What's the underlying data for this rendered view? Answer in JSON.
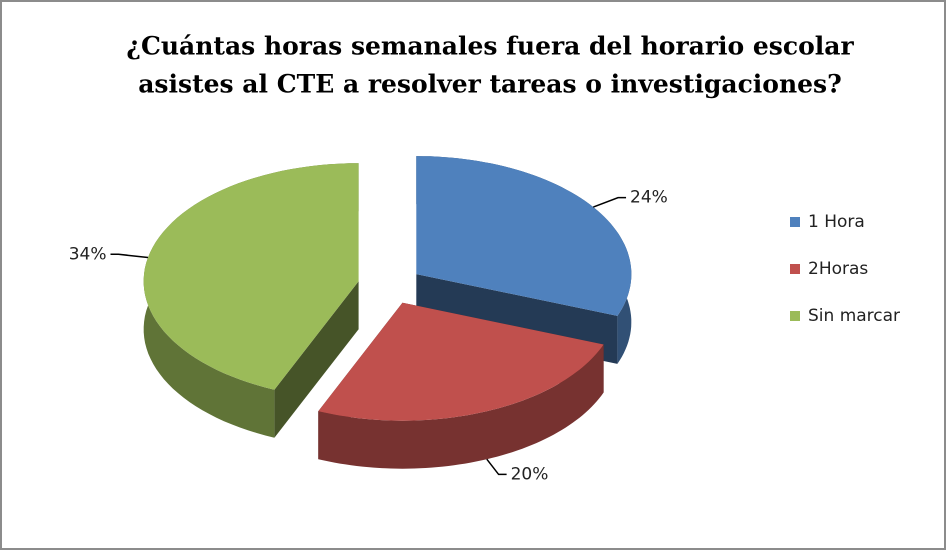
{
  "chart_data": {
    "type": "pie",
    "title": [
      "¿Cuántas horas semanales fuera del horario escolar",
      "asistes al CTE a resolver tareas o investigaciones?"
    ],
    "categories": [
      "1 Hora",
      "2Horas",
      "Sin marcar"
    ],
    "values": [
      24,
      20,
      34
    ],
    "value_labels": [
      "24%",
      "20%",
      "34%"
    ],
    "colors": [
      "#4f81bd",
      "#c0504d",
      "#9bbb59"
    ],
    "legend": "right"
  }
}
